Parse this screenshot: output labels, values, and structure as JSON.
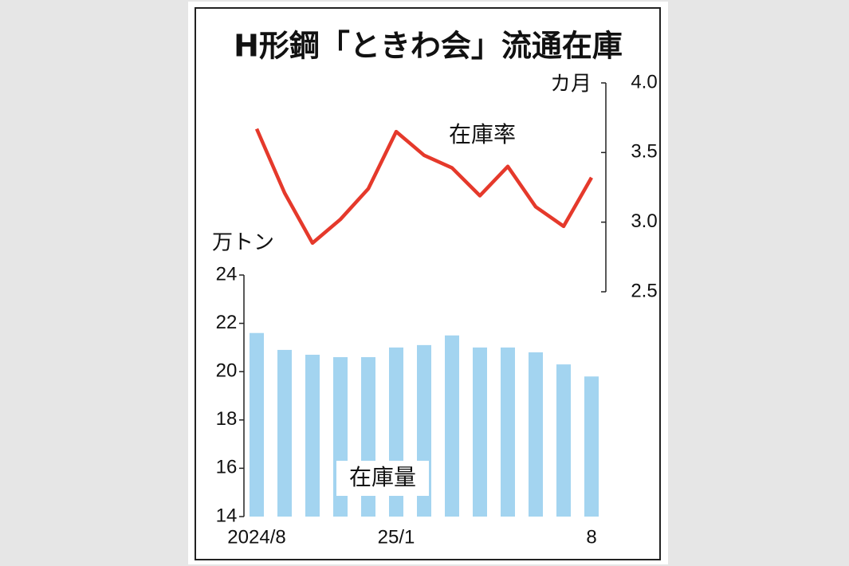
{
  "title": "H形鋼「ときわ会」流通在庫",
  "chart_data": [
    {
      "type": "line",
      "annotation": "在庫率",
      "y_label": "カ月",
      "axis_side": "right",
      "color": "#e5392b",
      "values": [
        3.67,
        3.21,
        2.85,
        3.02,
        3.24,
        3.65,
        3.48,
        3.39,
        3.19,
        3.4,
        3.11,
        2.97,
        3.32
      ],
      "ylim": [
        2.5,
        4.0
      ],
      "yticks": [
        {
          "value": 2.5,
          "label": "2.5"
        },
        {
          "value": 3.0,
          "label": "3.0"
        },
        3.5,
        {
          "value": 4.0,
          "label": "4.0"
        }
      ]
    },
    {
      "type": "bar",
      "annotation": "在庫量",
      "y_label": "万トン",
      "axis_side": "left",
      "color": "#a3d4f0",
      "categories": [
        "2024/8",
        null,
        null,
        null,
        null,
        "25/1",
        null,
        null,
        null,
        null,
        null,
        null,
        "8"
      ],
      "values": [
        21.6,
        20.9,
        20.7,
        20.6,
        20.6,
        21.0,
        21.1,
        21.5,
        21.0,
        21.0,
        20.8,
        20.3,
        19.8
      ],
      "ylim": [
        14,
        24
      ],
      "yticks": [
        14,
        16,
        18,
        20,
        22,
        24
      ]
    }
  ]
}
